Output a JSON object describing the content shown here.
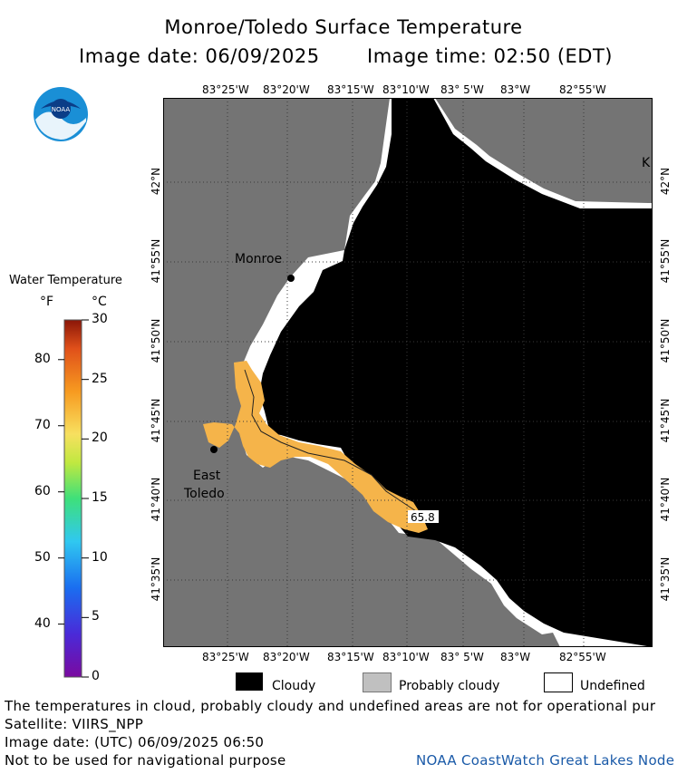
{
  "header": {
    "title": "Monroe/Toledo Surface Temperature",
    "image_date_label": "Image date: 06/09/2025",
    "image_time_label": "Image time: 02:50 (EDT)"
  },
  "logo": {
    "text": "NOAA"
  },
  "map": {
    "lon_ticks": [
      "83°25'W",
      "83°20'W",
      "83°15'W",
      "83°10'W",
      "83° 5'W",
      "83°W",
      "82°55'W"
    ],
    "lat_ticks": [
      "42°N",
      "41°55'N",
      "41°50'N",
      "41°45'N",
      "41°40'N",
      "41°35'N"
    ],
    "places": [
      {
        "name": "Monroe"
      },
      {
        "name": "East"
      },
      {
        "name": "Toledo"
      },
      {
        "name": "K"
      }
    ],
    "isotherm_label": "65.8",
    "colors": {
      "land": "#747474",
      "cloud": "#000000",
      "water_warm": "#f5b44a",
      "undefined": "#ffffff"
    }
  },
  "colorbar": {
    "title": "Water Temperature",
    "unit_f": "°F",
    "unit_c": "°C",
    "f_ticks": [
      "80",
      "70",
      "60",
      "50",
      "40"
    ],
    "c_ticks": [
      "30",
      "25",
      "20",
      "15",
      "10",
      "5",
      "0"
    ],
    "range_c": [
      0,
      30
    ]
  },
  "legend": {
    "cloudy": "Cloudy",
    "probably_cloudy": "Probably cloudy",
    "undefined": "Undefined",
    "colors": {
      "cloudy": "#000000",
      "probably_cloudy": "#c0c0c0",
      "undefined": "#ffffff"
    }
  },
  "footer": {
    "line1": "The temperatures in cloud, probably cloudy and undefined areas are not for operational pur",
    "line2": "Satellite: VIIRS_NPP",
    "line3": "Image date: (UTC) 06/09/2025  06:50",
    "line4": "Not to be used for navigational purpose",
    "credit": "NOAA CoastWatch Great Lakes Node"
  }
}
